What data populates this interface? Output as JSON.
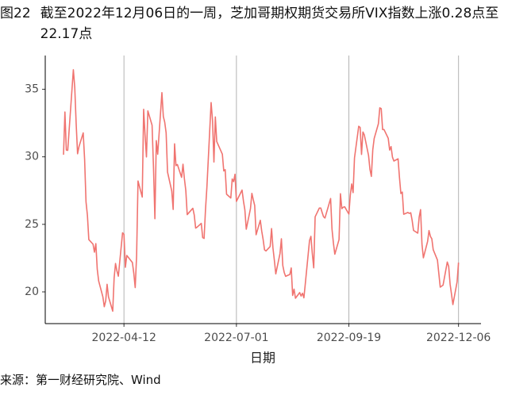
{
  "chart_data": {
    "type": "line",
    "figure_label": "图22",
    "title": "截至2022年12月06日的一周，芝加哥期权期货交易所VIX指数上涨0.28点至22.17点",
    "x_label": "日期",
    "source": "来源：第一财经研究院、Wind",
    "x": [
      "2022-02-28",
      "2022-03-01",
      "2022-03-02",
      "2022-03-03",
      "2022-03-04",
      "2022-03-07",
      "2022-03-08",
      "2022-03-09",
      "2022-03-10",
      "2022-03-11",
      "2022-03-14",
      "2022-03-15",
      "2022-03-16",
      "2022-03-17",
      "2022-03-18",
      "2022-03-21",
      "2022-03-22",
      "2022-03-23",
      "2022-03-24",
      "2022-03-25",
      "2022-03-28",
      "2022-03-29",
      "2022-03-30",
      "2022-03-31",
      "2022-04-01",
      "2022-04-04",
      "2022-04-05",
      "2022-04-06",
      "2022-04-07",
      "2022-04-08",
      "2022-04-11",
      "2022-04-12",
      "2022-04-13",
      "2022-04-14",
      "2022-04-18",
      "2022-04-19",
      "2022-04-20",
      "2022-04-21",
      "2022-04-22",
      "2022-04-25",
      "2022-04-26",
      "2022-04-27",
      "2022-04-28",
      "2022-04-29",
      "2022-05-02",
      "2022-05-03",
      "2022-05-04",
      "2022-05-05",
      "2022-05-06",
      "2022-05-09",
      "2022-05-10",
      "2022-05-11",
      "2022-05-12",
      "2022-05-13",
      "2022-05-16",
      "2022-05-17",
      "2022-05-18",
      "2022-05-19",
      "2022-05-20",
      "2022-05-23",
      "2022-05-24",
      "2022-05-25",
      "2022-05-26",
      "2022-05-27",
      "2022-05-31",
      "2022-06-01",
      "2022-06-02",
      "2022-06-03",
      "2022-06-06",
      "2022-06-07",
      "2022-06-08",
      "2022-06-09",
      "2022-06-10",
      "2022-06-13",
      "2022-06-14",
      "2022-06-15",
      "2022-06-16",
      "2022-06-17",
      "2022-06-21",
      "2022-06-22",
      "2022-06-23",
      "2022-06-24",
      "2022-06-27",
      "2022-06-28",
      "2022-06-29",
      "2022-06-30",
      "2022-07-01",
      "2022-07-05",
      "2022-07-06",
      "2022-07-07",
      "2022-07-08",
      "2022-07-11",
      "2022-07-12",
      "2022-07-13",
      "2022-07-14",
      "2022-07-15",
      "2022-07-18",
      "2022-07-19",
      "2022-07-20",
      "2022-07-21",
      "2022-07-22",
      "2022-07-25",
      "2022-07-26",
      "2022-07-27",
      "2022-07-28",
      "2022-07-29",
      "2022-08-01",
      "2022-08-02",
      "2022-08-03",
      "2022-08-04",
      "2022-08-05",
      "2022-08-08",
      "2022-08-09",
      "2022-08-10",
      "2022-08-11",
      "2022-08-12",
      "2022-08-15",
      "2022-08-16",
      "2022-08-17",
      "2022-08-18",
      "2022-08-19",
      "2022-08-22",
      "2022-08-23",
      "2022-08-24",
      "2022-08-25",
      "2022-08-26",
      "2022-08-29",
      "2022-08-30",
      "2022-08-31",
      "2022-09-01",
      "2022-09-02",
      "2022-09-06",
      "2022-09-07",
      "2022-09-08",
      "2022-09-09",
      "2022-09-12",
      "2022-09-13",
      "2022-09-14",
      "2022-09-15",
      "2022-09-16",
      "2022-09-19",
      "2022-09-20",
      "2022-09-21",
      "2022-09-22",
      "2022-09-23",
      "2022-09-26",
      "2022-09-27",
      "2022-09-28",
      "2022-09-29",
      "2022-09-30",
      "2022-10-03",
      "2022-10-04",
      "2022-10-05",
      "2022-10-06",
      "2022-10-07",
      "2022-10-10",
      "2022-10-11",
      "2022-10-12",
      "2022-10-13",
      "2022-10-14",
      "2022-10-17",
      "2022-10-18",
      "2022-10-19",
      "2022-10-20",
      "2022-10-21",
      "2022-10-24",
      "2022-10-25",
      "2022-10-26",
      "2022-10-27",
      "2022-10-28",
      "2022-10-31",
      "2022-11-01",
      "2022-11-02",
      "2022-11-03",
      "2022-11-04",
      "2022-11-07",
      "2022-11-08",
      "2022-11-09",
      "2022-11-10",
      "2022-11-11",
      "2022-11-14",
      "2022-11-15",
      "2022-11-16",
      "2022-11-17",
      "2022-11-18",
      "2022-11-21",
      "2022-11-22",
      "2022-11-23",
      "2022-11-25",
      "2022-11-28",
      "2022-11-29",
      "2022-11-30",
      "2022-12-01",
      "2022-12-02",
      "2022-12-05",
      "2022-12-06"
    ],
    "values": [
      30.15,
      33.32,
      30.5,
      30.48,
      31.98,
      36.45,
      35.13,
      32.45,
      30.23,
      30.75,
      31.77,
      29.83,
      26.67,
      25.67,
      23.87,
      23.53,
      22.94,
      23.57,
      21.67,
      20.81,
      19.63,
      18.9,
      19.33,
      20.56,
      19.63,
      18.57,
      21.03,
      22.1,
      21.55,
      21.16,
      24.37,
      24.26,
      21.82,
      22.7,
      22.17,
      21.37,
      20.32,
      22.68,
      28.21,
      27.02,
      33.52,
      31.6,
      29.99,
      33.4,
      32.34,
      29.25,
      25.42,
      31.2,
      30.19,
      34.75,
      32.99,
      32.56,
      31.77,
      28.87,
      27.47,
      26.1,
      30.96,
      29.35,
      29.43,
      28.48,
      29.45,
      28.37,
      27.5,
      25.72,
      26.19,
      25.69,
      24.72,
      24.79,
      25.07,
      24.02,
      23.96,
      26.09,
      27.75,
      34.02,
      32.69,
      29.62,
      32.95,
      31.13,
      30.19,
      28.95,
      29.05,
      27.23,
      26.95,
      28.36,
      28.16,
      28.71,
      26.7,
      27.54,
      26.73,
      26.08,
      24.64,
      26.17,
      27.29,
      26.82,
      26.4,
      24.23,
      25.3,
      24.5,
      23.88,
      23.11,
      23.03,
      23.36,
      24.69,
      23.24,
      22.33,
      21.33,
      22.84,
      23.93,
      21.95,
      21.44,
      21.15,
      21.29,
      21.77,
      19.74,
      20.2,
      19.53,
      19.95,
      19.69,
      19.9,
      19.56,
      20.6,
      23.8,
      24.11,
      22.82,
      21.78,
      25.56,
      26.21,
      26.21,
      25.87,
      25.56,
      25.47,
      26.91,
      24.64,
      23.61,
      22.79,
      23.87,
      27.27,
      26.16,
      26.27,
      26.3,
      25.76,
      27.16,
      27.99,
      27.35,
      29.92,
      32.26,
      32.18,
      30.18,
      31.84,
      31.62,
      30.1,
      29.07,
      28.55,
      30.52,
      31.36,
      32.45,
      33.63,
      33.57,
      32.02,
      32.02,
      31.37,
      30.5,
      30.76,
      29.98,
      29.69,
      29.85,
      28.46,
      27.28,
      27.39,
      25.75,
      25.88,
      25.81,
      25.86,
      25.3,
      24.55,
      24.35,
      25.54,
      26.09,
      23.53,
      22.52,
      23.73,
      24.54,
      24.11,
      23.93,
      23.12,
      22.36,
      21.35,
      20.35,
      20.5,
      22.21,
      21.89,
      20.58,
      19.84,
      19.06,
      20.75,
      22.17
    ],
    "color": "#f07470",
    "xlim": [
      "2022-02-15",
      "2022-12-22"
    ],
    "xticks": [
      "2022-04-12",
      "2022-07-01",
      "2022-09-19",
      "2022-12-06"
    ],
    "ylim": [
      17.65,
      37.5
    ],
    "yticks": [
      20,
      25,
      30,
      35
    ],
    "grid": "x"
  }
}
